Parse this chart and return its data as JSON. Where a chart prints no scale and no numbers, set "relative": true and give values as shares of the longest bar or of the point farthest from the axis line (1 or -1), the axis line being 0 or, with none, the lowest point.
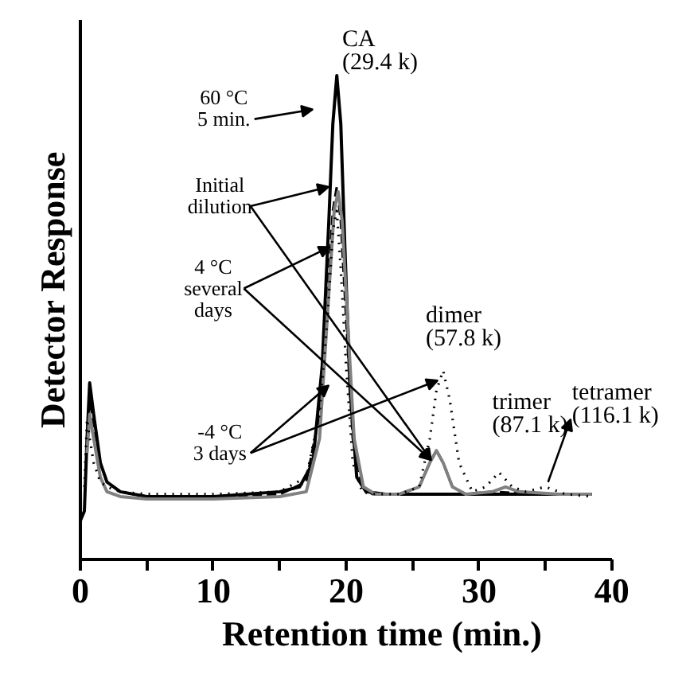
{
  "chart_data": {
    "type": "line",
    "relative": true,
    "xlabel": "Retention time (min.)",
    "ylabel": "Detector Response",
    "xlim": [
      0,
      40
    ],
    "xticks": [
      0,
      {
        "value": 5,
        "label": null
      },
      10,
      {
        "value": 15,
        "label": null
      },
      20,
      {
        "value": 25,
        "label": null
      },
      30,
      {
        "value": 35,
        "label": null
      },
      40
    ],
    "grid": false,
    "series": [
      {
        "color": "#000000",
        "line_style": "solid",
        "x": [
          0,
          0.3,
          0.5,
          0.7,
          1.0,
          1.5,
          2,
          3,
          5,
          10,
          15,
          16.5,
          17.5,
          18.2,
          18.7,
          19.0,
          19.3,
          19.6,
          19.9,
          20.3,
          20.8,
          21.5,
          23,
          26,
          30,
          34,
          38.5
        ],
        "values": [
          0.08,
          0.1,
          0.25,
          0.365,
          0.3,
          0.2,
          0.16,
          0.14,
          0.13,
          0.13,
          0.14,
          0.15,
          0.2,
          0.4,
          0.7,
          0.9,
          1.0,
          0.9,
          0.65,
          0.35,
          0.17,
          0.14,
          0.135,
          0.135,
          0.135,
          0.135,
          0.135
        ]
      },
      {
        "color": "#000000",
        "line_style": "dashed",
        "x": [
          0.5,
          0.7,
          1,
          1.5,
          2,
          3,
          5,
          10,
          15,
          17,
          18,
          18.6,
          19.0,
          19.3,
          19.6,
          20.0,
          20.5,
          21.2,
          22,
          24,
          25.5,
          26.3,
          26.8,
          27.3,
          28,
          29,
          31,
          34,
          38
        ],
        "values": [
          0.25,
          0.33,
          0.28,
          0.2,
          0.16,
          0.14,
          0.13,
          0.13,
          0.135,
          0.16,
          0.3,
          0.55,
          0.72,
          0.77,
          0.7,
          0.5,
          0.25,
          0.15,
          0.135,
          0.135,
          0.15,
          0.2,
          0.225,
          0.2,
          0.15,
          0.135,
          0.14,
          0.135,
          0.135
        ]
      },
      {
        "color": "#808080",
        "line_style": "solid",
        "x": [
          0.5,
          0.7,
          1,
          1.5,
          2,
          3,
          5,
          10,
          15,
          17,
          18,
          18.7,
          19.1,
          19.4,
          19.7,
          20.1,
          20.6,
          21.3,
          22.2,
          24,
          25.5,
          26.3,
          26.8,
          27.3,
          28,
          29,
          31,
          32,
          33,
          36,
          38.5
        ],
        "values": [
          0.22,
          0.3,
          0.25,
          0.17,
          0.14,
          0.13,
          0.125,
          0.125,
          0.13,
          0.14,
          0.25,
          0.55,
          0.72,
          0.76,
          0.7,
          0.5,
          0.25,
          0.15,
          0.135,
          0.135,
          0.15,
          0.2,
          0.225,
          0.2,
          0.15,
          0.135,
          0.14,
          0.15,
          0.14,
          0.135,
          0.135
        ]
      },
      {
        "color": "#000000",
        "line_style": "dotted",
        "x": [
          0.3,
          0.5,
          0.7,
          1,
          1.5,
          2,
          3,
          5,
          10,
          15,
          17,
          18,
          18.6,
          19.0,
          19.3,
          19.6,
          20.0,
          20.5,
          21.2,
          22,
          24,
          25.5,
          26.3,
          26.8,
          27.3,
          27.8,
          28.5,
          29.5,
          30.5,
          31.5,
          32.5,
          33.5,
          35,
          36.5,
          38.5
        ],
        "values": [
          0.15,
          0.29,
          0.25,
          0.2,
          0.16,
          0.15,
          0.14,
          0.135,
          0.135,
          0.14,
          0.17,
          0.3,
          0.5,
          0.68,
          0.72,
          0.6,
          0.4,
          0.2,
          0.14,
          0.135,
          0.135,
          0.15,
          0.25,
          0.35,
          0.39,
          0.33,
          0.2,
          0.14,
          0.15,
          0.18,
          0.15,
          0.14,
          0.15,
          0.135,
          0.13
        ]
      }
    ],
    "annotations": [
      {
        "text": "CA\n(29.4 k)",
        "x": 19.3,
        "y": 1.0
      },
      {
        "text": "dimer\n(57.8 k)",
        "x": 27.3,
        "y": 0.39
      },
      {
        "text": "trimer\n(87.1 k)",
        "x": 31.5,
        "y": 0.18
      },
      {
        "text": "tetramer\n(116.1 k)",
        "x": 35,
        "y": 0.15
      },
      "60 °C\n5 min.",
      "Initial\ndilution",
      "4 °C\nseveral\ndays",
      "-4 °C\n3 days"
    ]
  }
}
